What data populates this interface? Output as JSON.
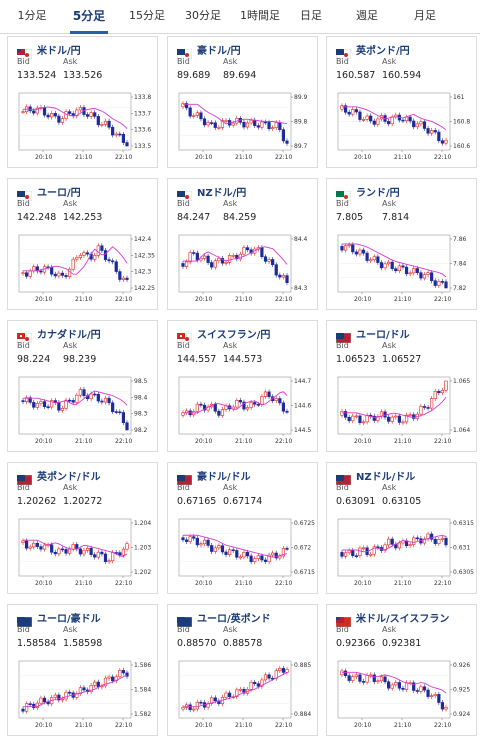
{
  "tabs": [
    "1分足",
    "5分足",
    "15分足",
    "30分足",
    "1時間足",
    "日足",
    "週足",
    "月足"
  ],
  "active_tab": 1,
  "labels": {
    "bid": "Bid",
    "ask": "Ask"
  },
  "colors": {
    "up": "#e8241c",
    "down": "#1e2a9a",
    "ma": "#d63ad6",
    "title": "#1a3c78"
  },
  "cards": [
    {
      "title": "米ドル/円",
      "bid": "133.524",
      "ask": "133.526",
      "flag": "us-jp-flag-icon",
      "chart_data": {
        "type": "candlestick",
        "x_ticks": [
          "20:10",
          "21:10",
          "22:10"
        ],
        "y_ticks": [
          "133.8",
          "133.7",
          "133.6",
          "133.5"
        ],
        "trend": [
          0.7,
          0.75,
          0.72,
          0.6,
          0.55,
          0.68,
          0.72,
          0.65,
          0.5,
          0.4,
          0.2,
          0.05
        ]
      }
    },
    {
      "title": "豪ドル/円",
      "bid": "89.689",
      "ask": "89.694",
      "flag": "au-jp-flag-icon",
      "chart_data": {
        "type": "candlestick",
        "x_ticks": [
          "20:10",
          "21:10",
          "22:10"
        ],
        "y_ticks": [
          "89.9",
          "89.8",
          "89.7"
        ],
        "trend": [
          0.8,
          0.65,
          0.55,
          0.4,
          0.45,
          0.5,
          0.48,
          0.45,
          0.45,
          0.42,
          0.4,
          0.05
        ]
      }
    },
    {
      "title": "英ポンド/円",
      "bid": "160.587",
      "ask": "160.594",
      "flag": "gb-jp-flag-icon",
      "chart_data": {
        "type": "candlestick",
        "x_ticks": [
          "20:10",
          "21:10",
          "22:10"
        ],
        "y_ticks": [
          "161",
          "160.8",
          "160.6"
        ],
        "trend": [
          0.75,
          0.7,
          0.6,
          0.5,
          0.55,
          0.52,
          0.6,
          0.5,
          0.45,
          0.35,
          0.2,
          0.05
        ]
      }
    },
    {
      "title": "ユーロ/円",
      "bid": "142.248",
      "ask": "142.253",
      "flag": "eu-jp-flag-icon",
      "chart_data": {
        "type": "candlestick",
        "x_ticks": [
          "20:10",
          "21:10",
          "22:10"
        ],
        "y_ticks": [
          "142.4",
          "142.35",
          "142.3",
          "142.25"
        ],
        "trend": [
          0.3,
          0.35,
          0.4,
          0.35,
          0.2,
          0.4,
          0.75,
          0.6,
          0.8,
          0.6,
          0.3,
          0.1
        ]
      }
    },
    {
      "title": "NZドル/円",
      "bid": "84.247",
      "ask": "84.259",
      "flag": "nz-jp-flag-icon",
      "chart_data": {
        "type": "candlestick",
        "x_ticks": [
          "20:10",
          "21:10",
          "22:10"
        ],
        "y_ticks": [
          "84.4",
          "84.3"
        ],
        "trend": [
          0.5,
          0.7,
          0.6,
          0.5,
          0.55,
          0.6,
          0.7,
          0.8,
          0.75,
          0.55,
          0.3,
          0.1
        ]
      }
    },
    {
      "title": "ランド/円",
      "bid": "7.805",
      "ask": "7.814",
      "flag": "za-jp-flag-icon",
      "chart_data": {
        "type": "candlestick",
        "x_ticks": [
          "20:10",
          "21:10",
          "22:10"
        ],
        "y_ticks": [
          "7.86",
          "7.84",
          "7.82"
        ],
        "trend": [
          0.85,
          0.8,
          0.7,
          0.6,
          0.5,
          0.45,
          0.4,
          0.35,
          0.3,
          0.25,
          0.1,
          0.05
        ]
      }
    },
    {
      "title": "カナダドル/円",
      "bid": "98.224",
      "ask": "98.239",
      "flag": "ca-jp-flag-icon",
      "chart_data": {
        "type": "candlestick",
        "x_ticks": [
          "20:10",
          "21:10",
          "22:10"
        ],
        "y_ticks": [
          "98.5",
          "98.4",
          "98.3",
          "98.2"
        ],
        "trend": [
          0.6,
          0.55,
          0.5,
          0.55,
          0.45,
          0.6,
          0.75,
          0.7,
          0.65,
          0.55,
          0.35,
          0.05
        ]
      }
    },
    {
      "title": "スイスフラン/円",
      "bid": "144.557",
      "ask": "144.573",
      "flag": "ch-jp-flag-icon",
      "chart_data": {
        "type": "candlestick",
        "x_ticks": [
          "20:10",
          "21:10",
          "22:10"
        ],
        "y_ticks": [
          "144.7",
          "144.6",
          "144.5"
        ],
        "trend": [
          0.3,
          0.4,
          0.5,
          0.45,
          0.35,
          0.5,
          0.55,
          0.45,
          0.6,
          0.75,
          0.55,
          0.4
        ]
      }
    },
    {
      "title": "ユーロ/ドル",
      "bid": "1.06523",
      "ask": "1.06527",
      "flag": "eu-us-flag-icon",
      "chart_data": {
        "type": "candlestick",
        "x_ticks": [
          "20:10",
          "21:10",
          "22:10"
        ],
        "y_ticks": [
          "1.065",
          "1.064"
        ],
        "trend": [
          0.3,
          0.25,
          0.2,
          0.25,
          0.3,
          0.25,
          0.2,
          0.25,
          0.35,
          0.5,
          0.75,
          0.95
        ]
      }
    },
    {
      "title": "英ポンド/ドル",
      "bid": "1.20262",
      "ask": "1.20272",
      "flag": "gb-us-flag-icon",
      "chart_data": {
        "type": "candlestick",
        "x_ticks": [
          "20:10",
          "21:10",
          "22:10"
        ],
        "y_ticks": [
          "1.204",
          "1.203",
          "1.202"
        ],
        "trend": [
          0.6,
          0.5,
          0.55,
          0.45,
          0.4,
          0.5,
          0.45,
          0.4,
          0.35,
          0.25,
          0.4,
          0.5
        ]
      }
    },
    {
      "title": "豪ドル/ドル",
      "bid": "0.67165",
      "ask": "0.67174",
      "flag": "au-us-flag-icon",
      "chart_data": {
        "type": "candlestick",
        "x_ticks": [
          "20:10",
          "21:10",
          "22:10"
        ],
        "y_ticks": [
          "0.6725",
          "0.672",
          "0.6715"
        ],
        "trend": [
          0.7,
          0.65,
          0.6,
          0.5,
          0.45,
          0.4,
          0.35,
          0.3,
          0.25,
          0.3,
          0.35,
          0.45
        ]
      }
    },
    {
      "title": "NZドル/ドル",
      "bid": "0.63091",
      "ask": "0.63105",
      "flag": "nz-us-flag-icon",
      "chart_data": {
        "type": "candlestick",
        "x_ticks": [
          "20:10",
          "21:10",
          "22:10"
        ],
        "y_ticks": [
          "0.6315",
          "0.631",
          "0.6305"
        ],
        "trend": [
          0.4,
          0.35,
          0.45,
          0.4,
          0.5,
          0.6,
          0.55,
          0.6,
          0.65,
          0.7,
          0.65,
          0.6
        ]
      }
    },
    {
      "title": "ユーロ/豪ドル",
      "bid": "1.58584",
      "ask": "1.58598",
      "flag": "eu-au-flag-icon",
      "chart_data": {
        "type": "candlestick",
        "x_ticks": [
          "20:10",
          "21:10",
          "22:10"
        ],
        "y_ticks": [
          "1.586",
          "1.584",
          "1.582"
        ],
        "trend": [
          0.1,
          0.2,
          0.25,
          0.3,
          0.35,
          0.4,
          0.45,
          0.55,
          0.6,
          0.7,
          0.8,
          0.85
        ]
      }
    },
    {
      "title": "ユーロ/英ポンド",
      "bid": "0.88570",
      "ask": "0.88578",
      "flag": "eu-gb-flag-icon",
      "chart_data": {
        "type": "candlestick",
        "x_ticks": [
          "20:10",
          "21:10",
          "22:10"
        ],
        "y_ticks": [
          "0.885",
          "0.884"
        ],
        "trend": [
          0.1,
          0.15,
          0.2,
          0.25,
          0.3,
          0.4,
          0.45,
          0.55,
          0.65,
          0.75,
          0.85,
          0.95
        ]
      }
    },
    {
      "title": "米ドル/スイスフラン",
      "bid": "0.92366",
      "ask": "0.92381",
      "flag": "us-ch-flag-icon",
      "chart_data": {
        "type": "candlestick",
        "x_ticks": [
          "20:10",
          "21:10",
          "22:10"
        ],
        "y_ticks": [
          "0.926",
          "0.925",
          "0.924"
        ],
        "trend": [
          0.8,
          0.75,
          0.7,
          0.75,
          0.7,
          0.6,
          0.55,
          0.6,
          0.5,
          0.45,
          0.3,
          0.1
        ]
      }
    }
  ]
}
